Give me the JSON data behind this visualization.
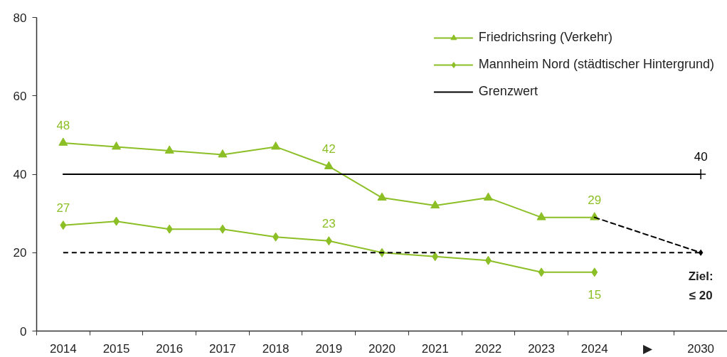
{
  "chart_data": {
    "type": "line",
    "categories": [
      "2014",
      "2015",
      "2016",
      "2017",
      "2018",
      "2019",
      "2020",
      "2021",
      "2022",
      "2023",
      "2024",
      "▶",
      "2030"
    ],
    "ylim": [
      0,
      80
    ],
    "yticks": [
      0,
      20,
      40,
      60,
      80
    ],
    "grid": false,
    "legend": "top right",
    "series": [
      {
        "name": "Friedrichsring (Verkehr)",
        "color": "#8cbf26",
        "marker": "triangle",
        "values": [
          48,
          47,
          46,
          45,
          47,
          42,
          34,
          32,
          34,
          29,
          29,
          null,
          null
        ],
        "value_labels": [
          "48",
          null,
          null,
          null,
          null,
          "42",
          null,
          null,
          null,
          null,
          "29",
          null,
          null
        ]
      },
      {
        "name": "Mannheim Nord (städtischer Hintergrund)",
        "color": "#8cbf26",
        "marker": "diamond",
        "values": [
          27,
          28,
          26,
          26,
          24,
          23,
          20,
          19,
          18,
          15,
          15,
          null,
          null
        ],
        "value_labels": [
          "27",
          null,
          null,
          null,
          null,
          "23",
          null,
          null,
          null,
          null,
          "15",
          null,
          null
        ]
      },
      {
        "name": "Grenzwert",
        "color": "#000000",
        "marker": "none",
        "values": [
          40,
          40,
          40,
          40,
          40,
          40,
          40,
          40,
          40,
          40,
          40,
          40,
          40
        ],
        "value_labels": [
          null,
          null,
          null,
          null,
          null,
          null,
          null,
          null,
          null,
          null,
          null,
          null,
          "40"
        ]
      },
      {
        "type": "scatter",
        "color": "#000000",
        "marker": "cross",
        "values": [
          null,
          null,
          null,
          null,
          null,
          null,
          null,
          null,
          null,
          null,
          null,
          null,
          40
        ]
      },
      {
        "color": "#000000",
        "line_style": "dashed",
        "marker": "none",
        "values": [
          null,
          null,
          null,
          null,
          null,
          null,
          null,
          null,
          null,
          null,
          29,
          24.5,
          20
        ]
      },
      {
        "type": "scatter",
        "color": "#000000",
        "marker": "diamond",
        "values": [
          null,
          null,
          null,
          null,
          null,
          null,
          null,
          null,
          null,
          null,
          null,
          null,
          20
        ]
      }
    ],
    "ref_lines": [
      {
        "axis": "y",
        "value": 20,
        "label": "Ziel:\n≤ 20",
        "color": "#000000",
        "line_style": "dashed"
      }
    ]
  }
}
